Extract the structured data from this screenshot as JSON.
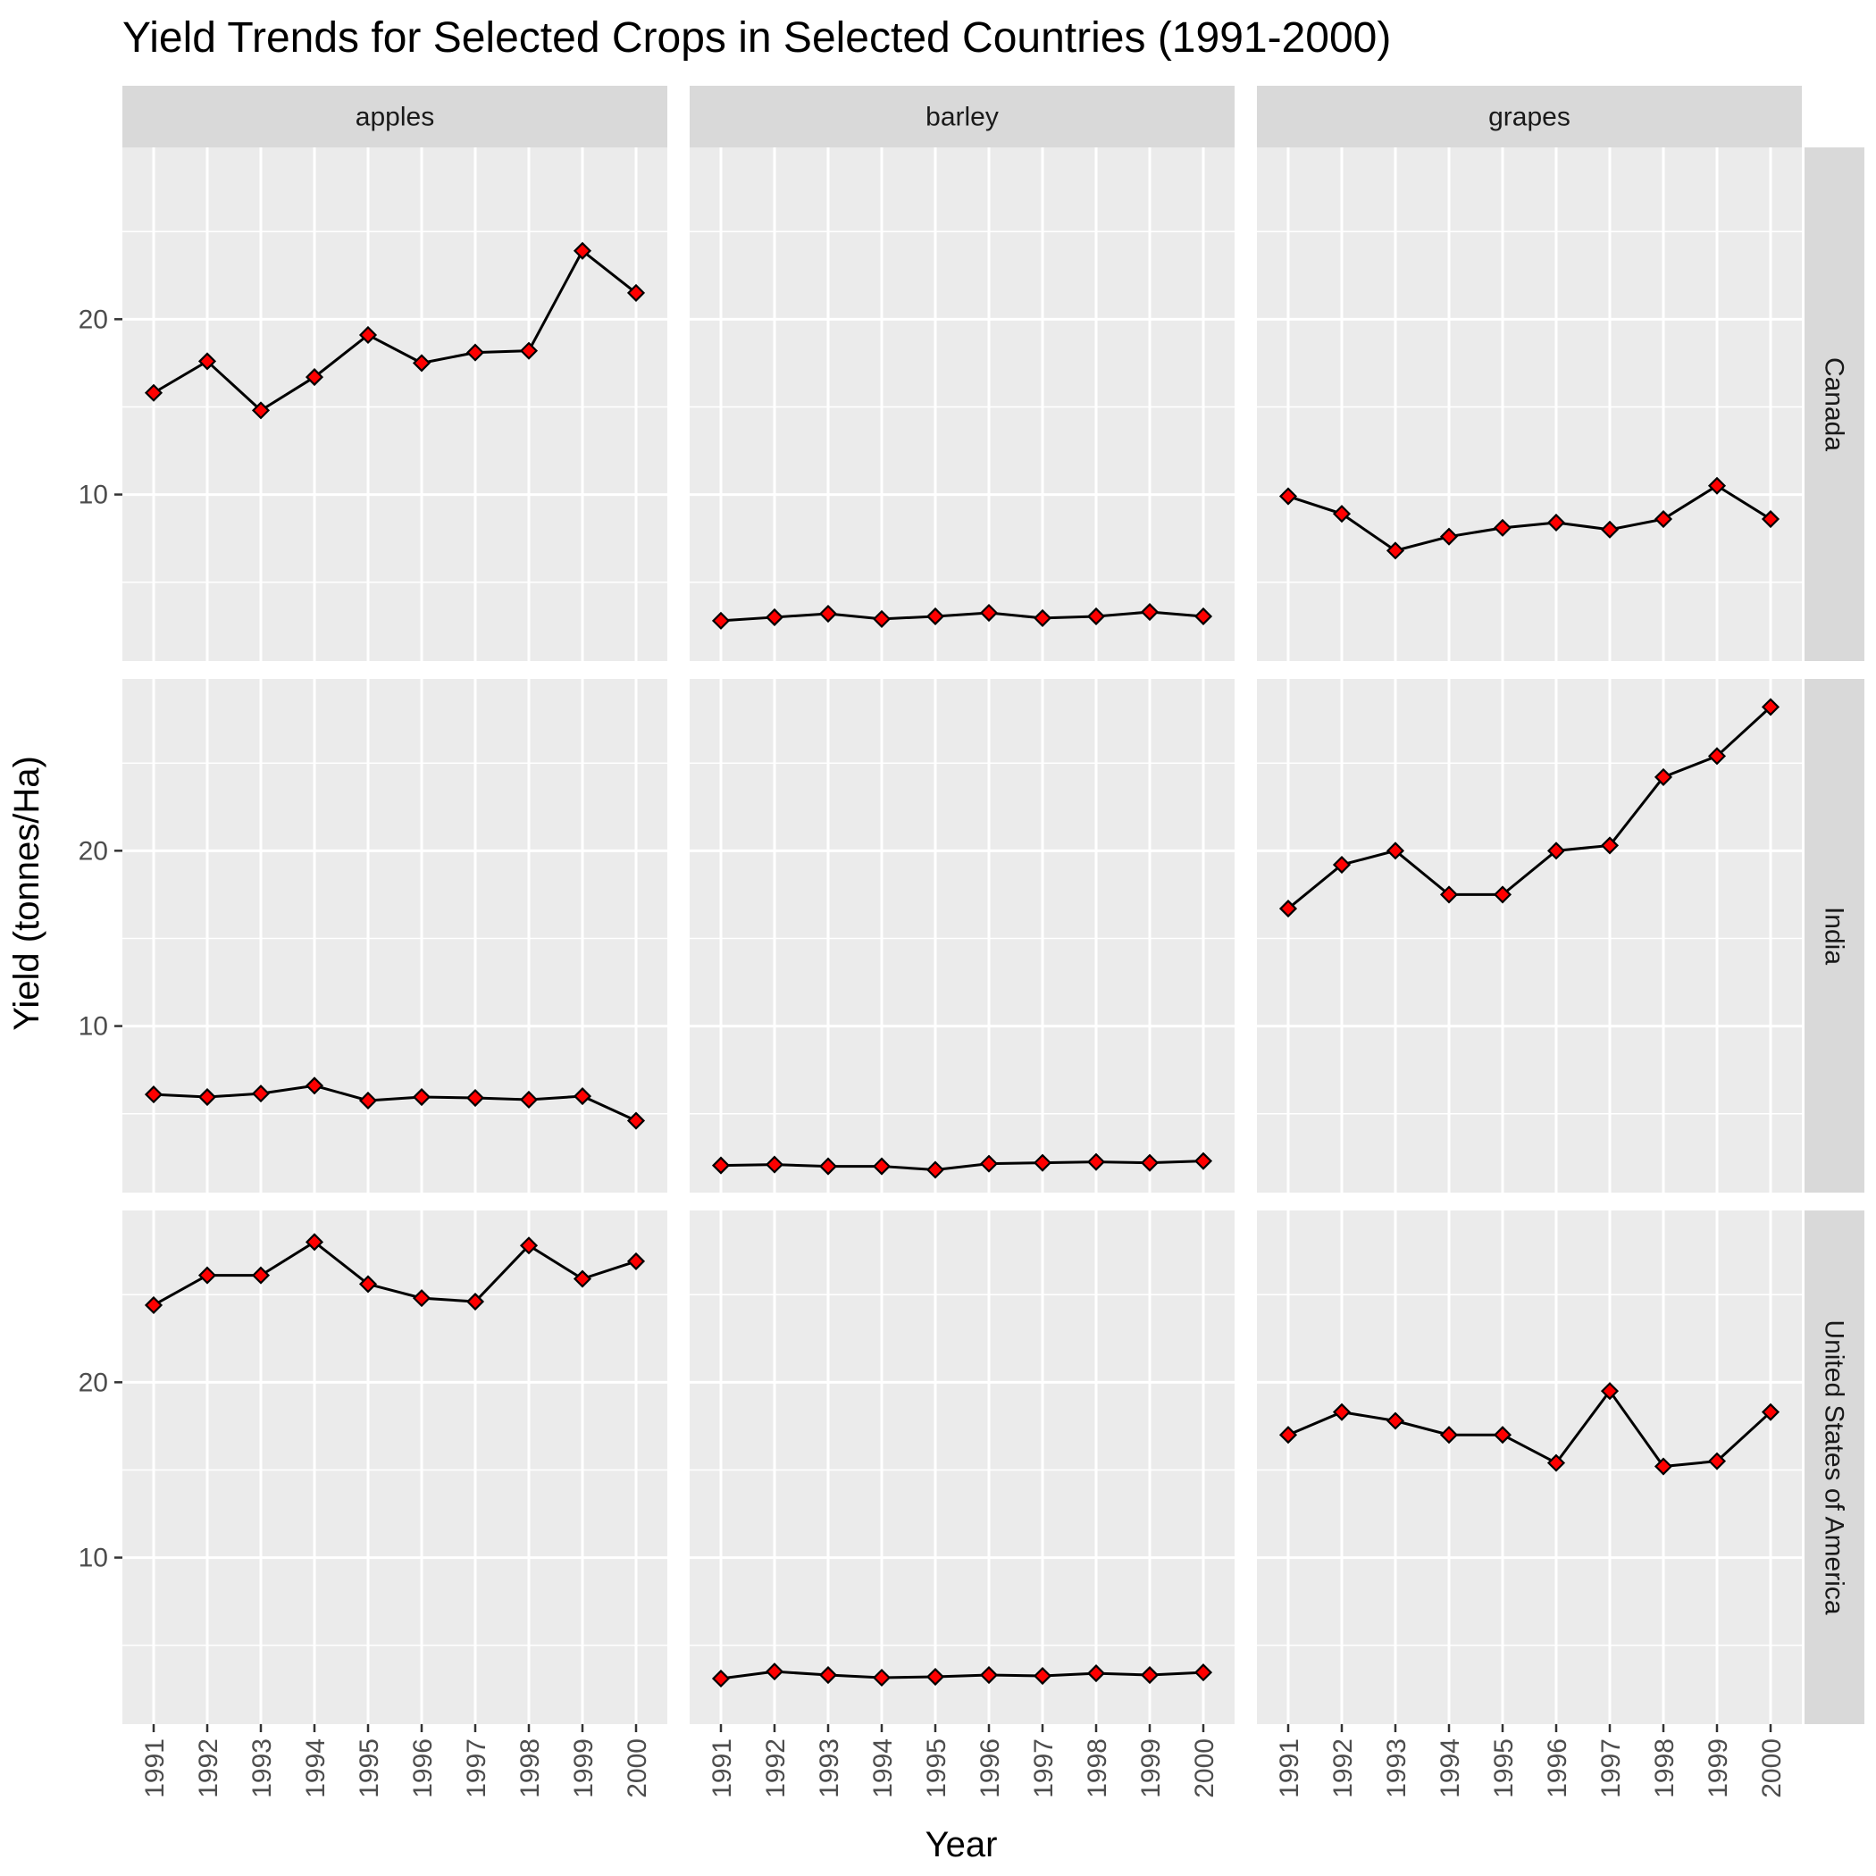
{
  "chart_data": {
    "type": "line",
    "title": "Yield Trends for Selected Crops in Selected Countries (1991-2000)",
    "xlabel": "Year",
    "ylabel": "Yield (tonnes/Ha)",
    "x": [
      "1991",
      "1992",
      "1993",
      "1994",
      "1995",
      "1996",
      "1997",
      "1998",
      "1999",
      "2000"
    ],
    "ylim": [
      0.5,
      29.8
    ],
    "y_ticks": [
      "10",
      "20"
    ],
    "facet_columns": [
      "apples",
      "barley",
      "grapes"
    ],
    "facet_rows": [
      "Canada",
      "India",
      "United States of America"
    ],
    "grid": true,
    "marker": "diamond",
    "colors": {
      "panel_bg": "#ebebeb",
      "grid": "#ffffff",
      "strip_bg": "#d9d9d9",
      "line": "#000000",
      "marker_fill": "#ff0000",
      "marker_stroke": "#000000"
    },
    "series": [
      {
        "row": "Canada",
        "col": "apples",
        "values": [
          15.8,
          17.6,
          14.8,
          16.7,
          19.1,
          17.5,
          18.1,
          18.2,
          23.9,
          21.5
        ]
      },
      {
        "row": "Canada",
        "col": "barley",
        "values": [
          2.8,
          3.0,
          3.2,
          2.9,
          3.05,
          3.25,
          2.95,
          3.05,
          3.3,
          3.05
        ]
      },
      {
        "row": "Canada",
        "col": "grapes",
        "values": [
          9.9,
          8.9,
          6.8,
          7.6,
          8.1,
          8.4,
          8.0,
          8.6,
          10.5,
          8.6
        ]
      },
      {
        "row": "India",
        "col": "apples",
        "values": [
          6.1,
          5.95,
          6.15,
          6.6,
          5.75,
          5.95,
          5.9,
          5.8,
          6.0,
          4.6
        ]
      },
      {
        "row": "India",
        "col": "barley",
        "values": [
          2.05,
          2.1,
          2.0,
          2.0,
          1.8,
          2.15,
          2.2,
          2.25,
          2.2,
          2.3
        ]
      },
      {
        "row": "India",
        "col": "grapes",
        "values": [
          16.7,
          19.2,
          20.0,
          17.5,
          17.5,
          20.0,
          20.3,
          24.2,
          25.4,
          28.2
        ]
      },
      {
        "row": "United States of America",
        "col": "apples",
        "values": [
          24.4,
          26.1,
          26.1,
          28.0,
          25.6,
          24.8,
          24.6,
          27.8,
          25.9,
          26.9
        ]
      },
      {
        "row": "United States of America",
        "col": "barley",
        "values": [
          3.1,
          3.5,
          3.3,
          3.15,
          3.2,
          3.3,
          3.25,
          3.4,
          3.3,
          3.45
        ]
      },
      {
        "row": "United States of America",
        "col": "grapes",
        "values": [
          17.0,
          18.3,
          17.8,
          17.0,
          17.0,
          15.4,
          19.5,
          15.2,
          15.5,
          18.3
        ]
      }
    ]
  }
}
